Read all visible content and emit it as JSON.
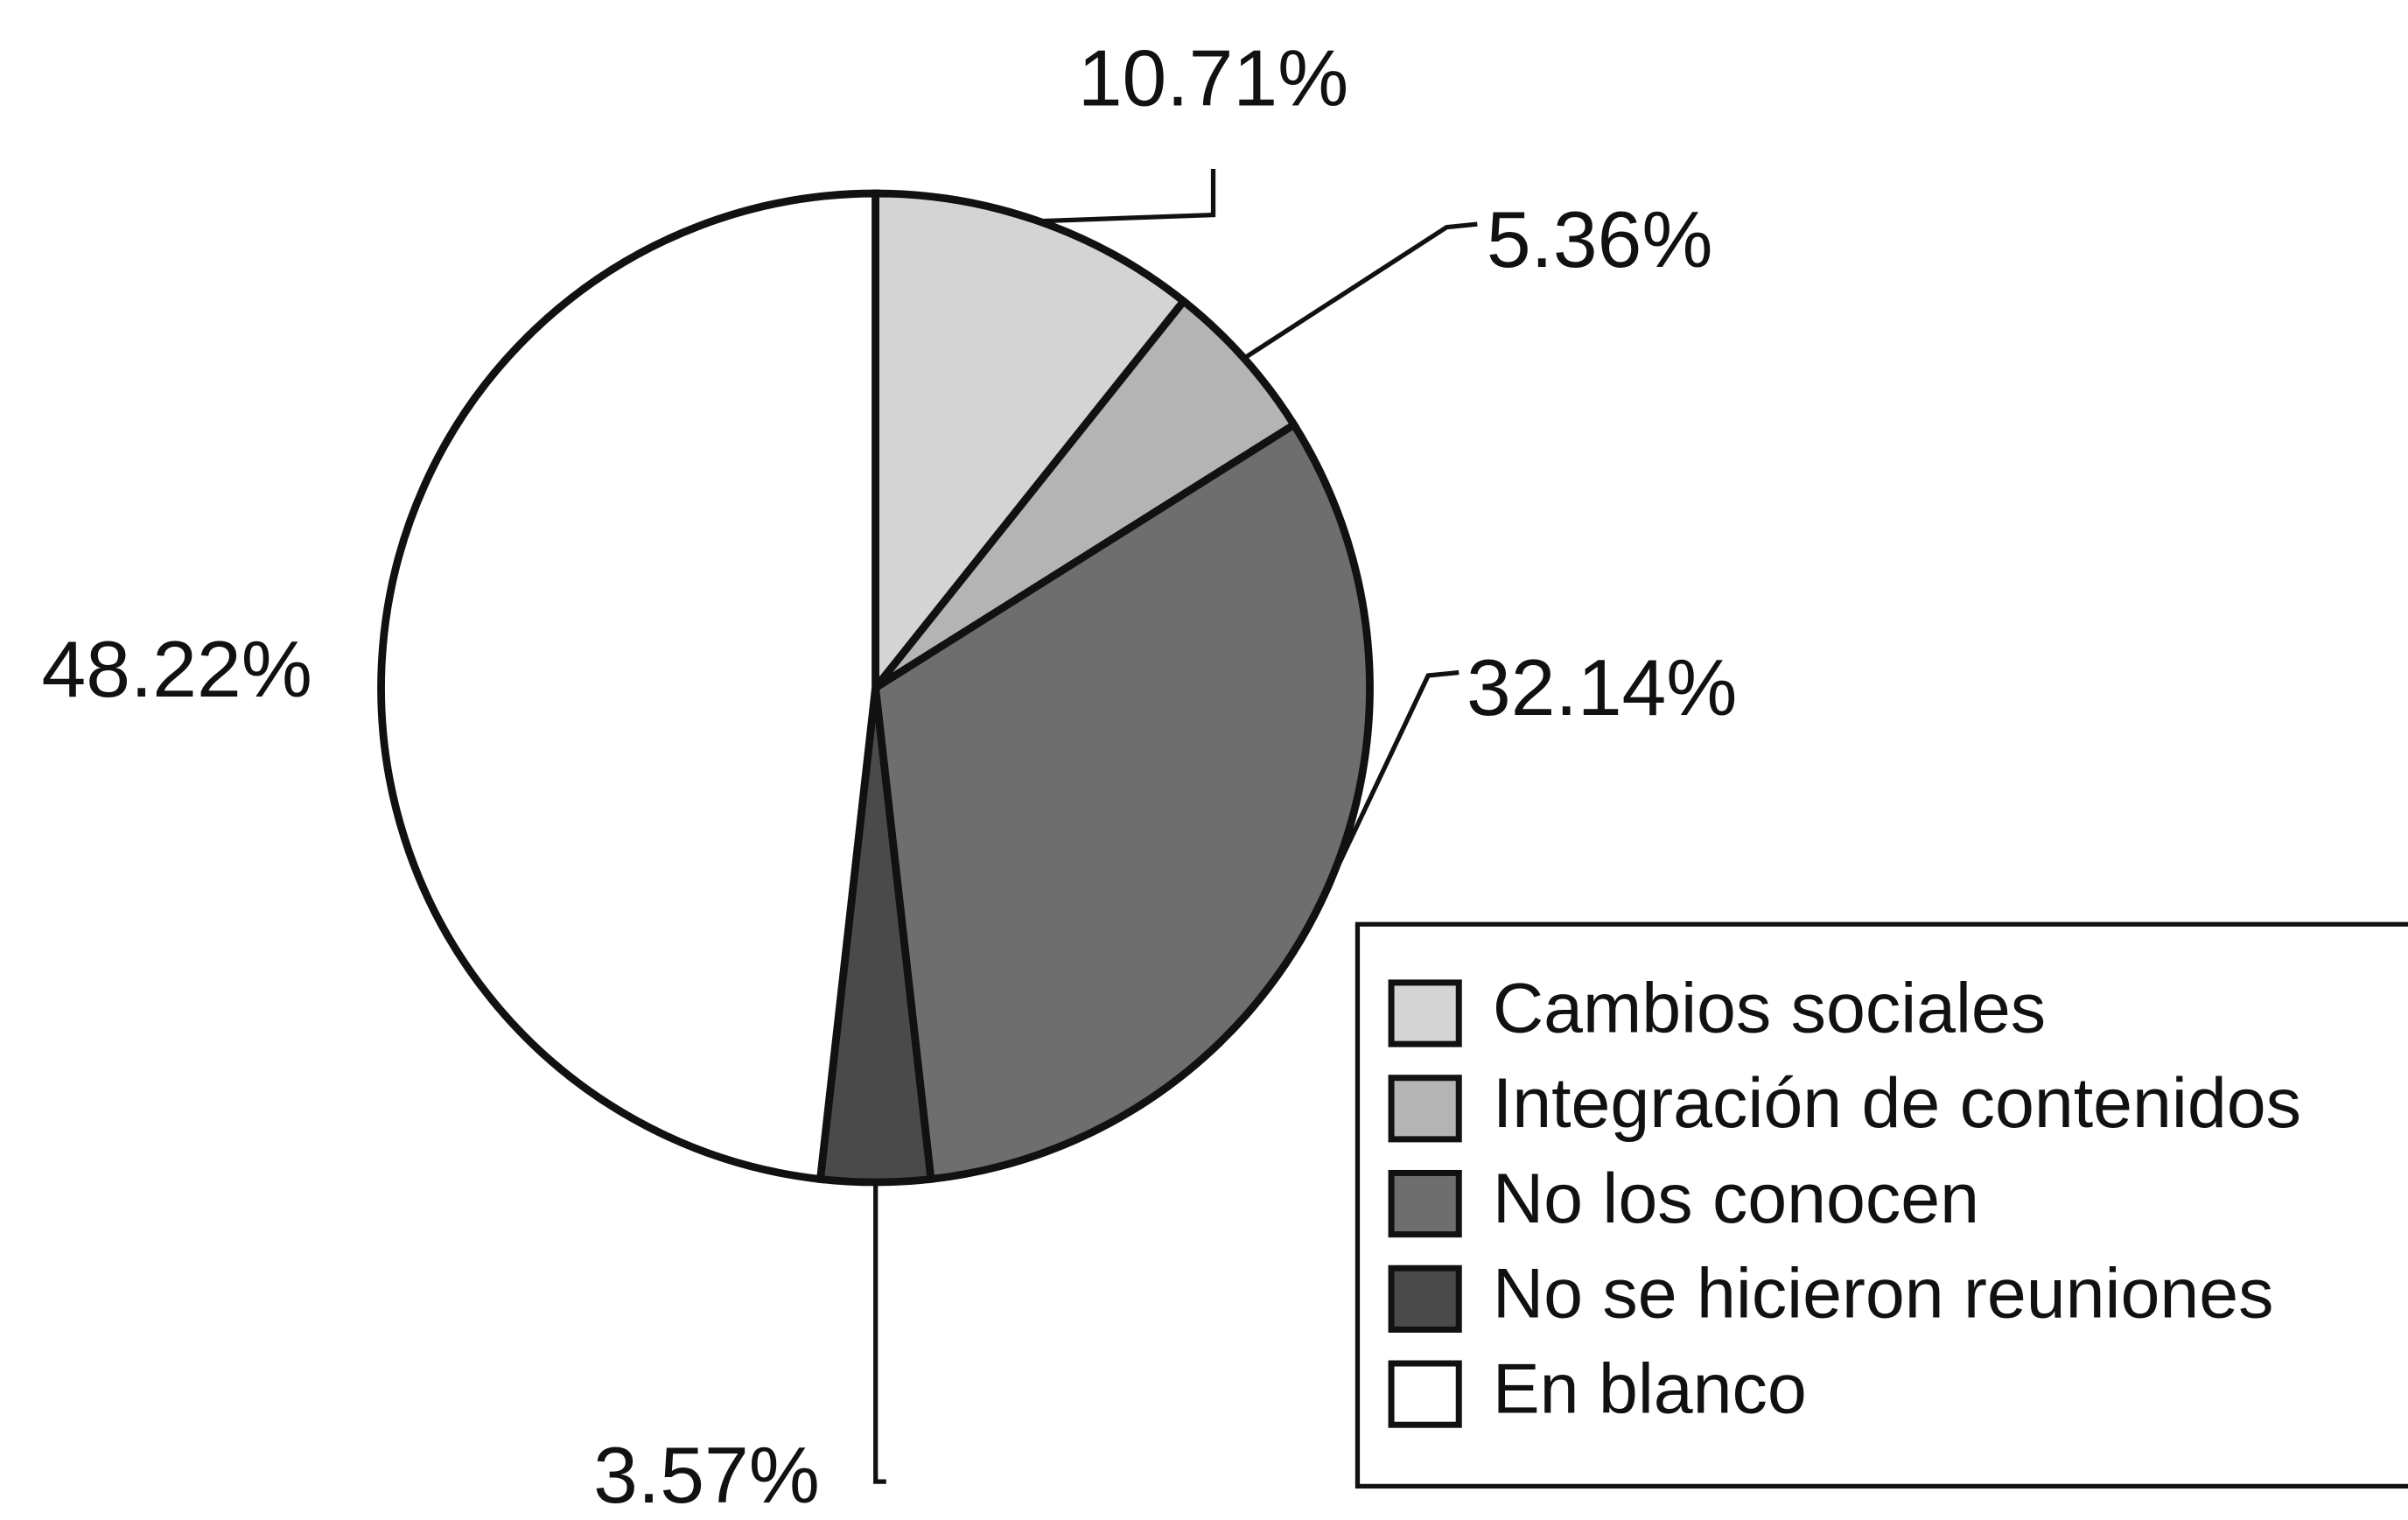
{
  "chart_data": {
    "type": "pie",
    "categories": [
      "Cambios sociales",
      "Integración de contenidos",
      "No los conocen",
      "No se hicieron reuniones",
      "En blanco"
    ],
    "values": [
      10.71,
      5.36,
      32.14,
      3.57,
      48.22
    ],
    "value_labels": [
      "10.71%",
      "5.36%",
      "32.14%",
      "3.57%",
      "48.22%"
    ],
    "colors": [
      "#d4d4d4",
      "#b4b4b4",
      "#6e6e6e",
      "#4a4a4a",
      "#ffffff"
    ],
    "legend": "bottom-right"
  }
}
